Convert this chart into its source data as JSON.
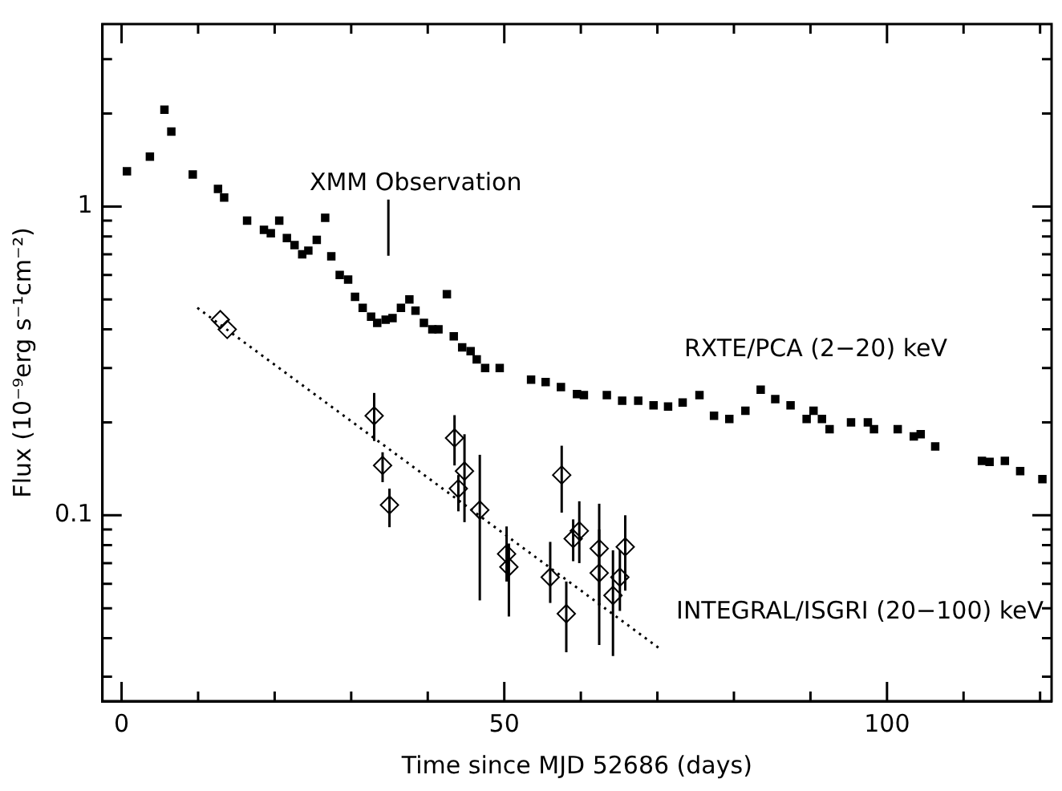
{
  "chart_data": {
    "type": "scatter",
    "xlabel": "Time since MJD 52686 (days)",
    "ylabel": "Flux (10⁻⁹erg s⁻¹cm⁻²)",
    "xlim": [
      -2.5,
      121.5
    ],
    "ylim": [
      0.025,
      3.9
    ],
    "log": "y",
    "grid": false,
    "legend": "bottom right",
    "xticks": [
      0,
      {
        "value": 10,
        "label": null
      },
      {
        "value": 20,
        "label": null
      },
      {
        "value": 30,
        "label": null
      },
      {
        "value": 40,
        "label": null
      },
      50,
      {
        "value": 60,
        "label": null
      },
      {
        "value": 70,
        "label": null
      },
      {
        "value": 80,
        "label": null
      },
      {
        "value": 90,
        "label": null
      },
      100,
      {
        "value": 110,
        "label": null
      },
      {
        "value": 120,
        "label": null
      }
    ],
    "yticks": [
      {
        "value": 0.03,
        "label": null
      },
      {
        "value": 0.04,
        "label": null
      },
      {
        "value": 0.05,
        "label": null
      },
      {
        "value": 0.06,
        "label": null
      },
      {
        "value": 0.07,
        "label": null
      },
      {
        "value": 0.08,
        "label": null
      },
      {
        "value": 0.09,
        "label": null
      },
      0.1,
      {
        "value": 0.2,
        "label": null
      },
      {
        "value": 0.3,
        "label": null
      },
      {
        "value": 0.4,
        "label": null
      },
      {
        "value": 0.5,
        "label": null
      },
      {
        "value": 0.6,
        "label": null
      },
      {
        "value": 0.7,
        "label": null
      },
      {
        "value": 0.8,
        "label": null
      },
      {
        "value": 0.9,
        "label": null
      },
      1,
      {
        "value": 2,
        "label": null
      },
      {
        "value": 3,
        "label": null
      }
    ],
    "annotations": [
      "XMM Observation"
    ],
    "series": [
      {
        "name": "RXTE/PCA (2−20) keV",
        "color": "#000000",
        "marker": "square",
        "x": [
          0.7,
          3.7,
          5.6,
          6.5,
          9.3,
          12.6,
          13.4,
          16.4,
          18.6,
          19.5,
          20.6,
          21.6,
          22.6,
          23.6,
          24.4,
          25.5,
          26.6,
          27.4,
          28.5,
          29.6,
          30.5,
          31.5,
          32.6,
          33.4,
          34.5,
          35.4,
          36.5,
          37.6,
          38.4,
          39.5,
          40.6,
          41.4,
          42.5,
          43.4,
          44.5,
          45.6,
          46.4,
          47.5,
          49.4,
          53.5,
          55.4,
          57.4,
          59.5,
          60.4,
          63.4,
          65.4,
          67.5,
          69.5,
          71.4,
          73.3,
          75.5,
          77.4,
          79.4,
          81.5,
          83.5,
          85.4,
          87.4,
          89.5,
          90.4,
          91.5,
          92.5,
          95.3,
          97.5,
          98.3,
          101.4,
          103.5,
          104.4,
          106.3,
          112.4,
          113.4,
          115.4,
          117.4,
          120.3
        ],
        "values": [
          1.3,
          1.45,
          2.06,
          1.75,
          1.27,
          1.14,
          1.07,
          0.9,
          0.84,
          0.82,
          0.9,
          0.79,
          0.75,
          0.7,
          0.72,
          0.78,
          0.92,
          0.69,
          0.6,
          0.58,
          0.51,
          0.47,
          0.44,
          0.42,
          0.43,
          0.435,
          0.47,
          0.5,
          0.46,
          0.42,
          0.4,
          0.4,
          0.52,
          0.38,
          0.35,
          0.34,
          0.32,
          0.3,
          0.3,
          0.275,
          0.27,
          0.26,
          0.247,
          0.245,
          0.245,
          0.235,
          0.235,
          0.227,
          0.225,
          0.232,
          0.245,
          0.21,
          0.205,
          0.218,
          0.255,
          0.238,
          0.227,
          0.205,
          0.218,
          0.205,
          0.19,
          0.2,
          0.2,
          0.19,
          0.19,
          0.18,
          0.183,
          0.167,
          0.15,
          0.149,
          0.15,
          0.139,
          0.131
        ]
      },
      {
        "name": "INTEGRAL/ISGRI (20−100) keV",
        "color": "#000000",
        "marker": "diamond",
        "x": [
          12.9,
          13.8,
          33.0,
          34.1,
          35.0,
          43.5,
          44.0,
          44.8,
          46.8,
          50.3,
          50.6,
          56.0,
          57.5,
          58.1,
          59.0,
          59.8,
          62.4,
          62.4,
          64.2,
          65.1,
          65.8
        ],
        "values": [
          0.43,
          0.4,
          0.21,
          0.145,
          0.108,
          0.178,
          0.122,
          0.139,
          0.104,
          0.075,
          0.068,
          0.063,
          0.135,
          0.048,
          0.084,
          0.089,
          0.078,
          0.065,
          0.055,
          0.063,
          0.079
        ],
        "errors": [
          null,
          null,
          [
            0.174,
            0.249
          ],
          [
            0.128,
            0.16
          ],
          [
            0.0915,
            0.122
          ],
          [
            0.145,
            0.211
          ],
          [
            0.103,
            0.135
          ],
          [
            0.095,
            0.183
          ],
          [
            0.053,
            0.157
          ],
          [
            0.061,
            0.092
          ],
          [
            0.047,
            0.081
          ],
          [
            0.052,
            0.082
          ],
          [
            0.102,
            0.168
          ],
          [
            0.036,
            0.061
          ],
          [
            0.071,
            0.097
          ],
          [
            0.07,
            0.111
          ],
          [
            0.051,
            0.109
          ],
          [
            0.038,
            0.09
          ],
          [
            0.035,
            0.077
          ],
          [
            0.049,
            0.077
          ],
          [
            0.057,
            0.1
          ]
        ]
      },
      {
        "type": "line",
        "color": "#000000",
        "marker": "none",
        "line_style": "dotted",
        "x": [
          9.9,
          70.3
        ],
        "values": [
          0.47,
          0.037
        ]
      }
    ]
  }
}
